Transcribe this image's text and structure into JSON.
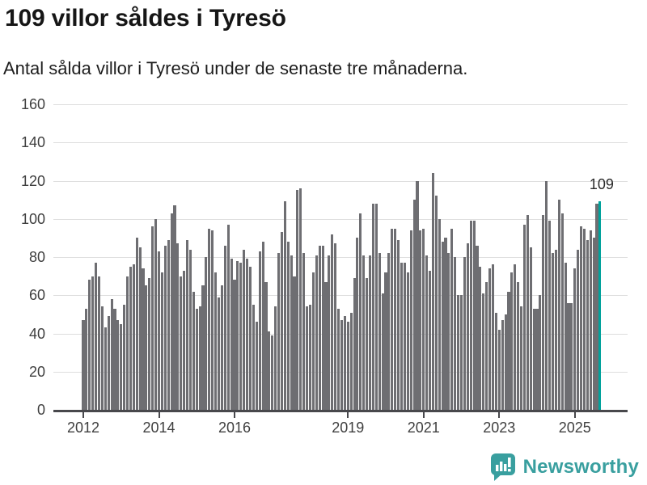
{
  "header": {
    "title": "109 villor såldes i Tyresö",
    "subtitle": "Antal sålda villor i Tyresö under de senaste tre månaderna."
  },
  "chart_data": {
    "type": "bar",
    "title": "109 villor såldes i Tyresö",
    "subtitle": "Antal sålda villor i Tyresö under de senaste tre månaderna.",
    "frequency": "monthly",
    "x_start": "2012-01",
    "x_end": "2025-09",
    "ylim": [
      0,
      160
    ],
    "yticks": [
      0,
      20,
      40,
      60,
      80,
      100,
      120,
      140,
      160
    ],
    "grid": true,
    "xticks": [
      {
        "label": "2012",
        "month_index": 0
      },
      {
        "label": "2014",
        "month_index": 24
      },
      {
        "label": "2016",
        "month_index": 48
      },
      {
        "label": "2019",
        "month_index": 84
      },
      {
        "label": "2021",
        "month_index": 108
      },
      {
        "label": "2023",
        "month_index": 132
      },
      {
        "label": "2025",
        "month_index": 156
      }
    ],
    "values": [
      47,
      53,
      68,
      70,
      77,
      70,
      54,
      43,
      49,
      58,
      53,
      47,
      45,
      55,
      70,
      75,
      76,
      90,
      85,
      74,
      65,
      69,
      96,
      100,
      83,
      72,
      86,
      89,
      103,
      107,
      87,
      70,
      73,
      89,
      84,
      62,
      53,
      54,
      65,
      80,
      95,
      94,
      72,
      59,
      65,
      86,
      97,
      79,
      68,
      78,
      77,
      84,
      79,
      75,
      55,
      46,
      83,
      88,
      67,
      41,
      39,
      54,
      82,
      93,
      109,
      88,
      81,
      70,
      115,
      116,
      82,
      54,
      55,
      72,
      81,
      86,
      86,
      67,
      81,
      92,
      87,
      53,
      47,
      49,
      46,
      51,
      69,
      90,
      103,
      81,
      69,
      81,
      108,
      108,
      82,
      61,
      72,
      82,
      95,
      95,
      89,
      77,
      77,
      72,
      94,
      110,
      120,
      94,
      95,
      81,
      73,
      124,
      112,
      100,
      88,
      90,
      82,
      95,
      80,
      60,
      60,
      80,
      87,
      99,
      99,
      86,
      75,
      61,
      67,
      74,
      76,
      51,
      42,
      47,
      50,
      62,
      72,
      76,
      67,
      54,
      97,
      102,
      85,
      53,
      53,
      60,
      102,
      120,
      99,
      82,
      84,
      110,
      103,
      77,
      56,
      56,
      74,
      84,
      96,
      95,
      89,
      94,
      90,
      108,
      109
    ],
    "highlight_last_bar": true,
    "last_value_label": "109",
    "colors": {
      "bar": "#6e6e72",
      "highlight": "#00a29c",
      "grid": "#dedede",
      "axis": "#48484c",
      "label": "#3f3f3f"
    }
  },
  "footer": {
    "brand": "Newsworthy",
    "logo_icon": "newsworthy-bubble-chart-icon",
    "brand_color": "#399f9f"
  }
}
